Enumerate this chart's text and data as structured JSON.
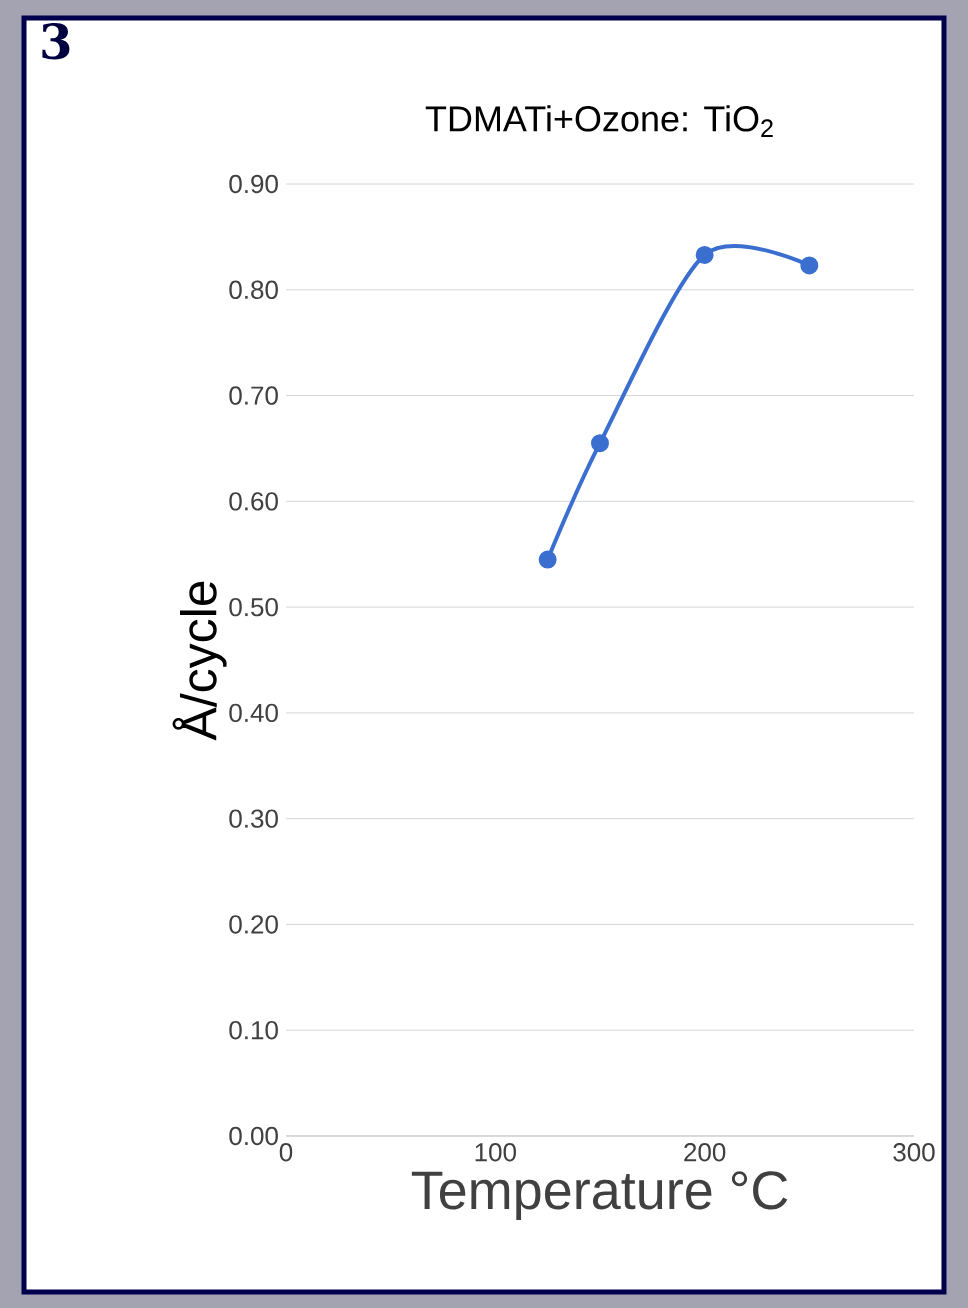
{
  "chart_data": {
    "type": "line",
    "title": "TDMATi+Ozone: TiO$_{2}$",
    "xlabel": "Temperature °C",
    "ylabel": "Å/cycle",
    "annotations": [
      "3"
    ],
    "x": [
      125,
      150,
      200,
      250
    ],
    "series": [
      {
        "color": "#3a6fd0",
        "values": [
          0.545,
          0.655,
          0.833,
          0.823
        ]
      }
    ],
    "xlim": [
      0,
      300
    ],
    "xticks": [
      0,
      100,
      200,
      300
    ],
    "ylim": [
      0,
      0.9
    ],
    "yticks": [
      {
        "value": 0,
        "label": "0.00"
      },
      {
        "value": 0.1,
        "label": "0.10"
      },
      {
        "value": 0.2,
        "label": "0.20"
      },
      {
        "value": 0.3,
        "label": "0.30"
      },
      {
        "value": 0.4,
        "label": "0.40"
      },
      {
        "value": 0.5,
        "label": "0.50"
      },
      {
        "value": 0.6,
        "label": "0.60"
      },
      {
        "value": 0.7,
        "label": "0.70"
      },
      {
        "value": 0.8,
        "label": "0.80"
      },
      {
        "value": 0.9,
        "label": "0.90"
      }
    ],
    "grid": "y",
    "marker": "circle",
    "line_style": "solid"
  }
}
